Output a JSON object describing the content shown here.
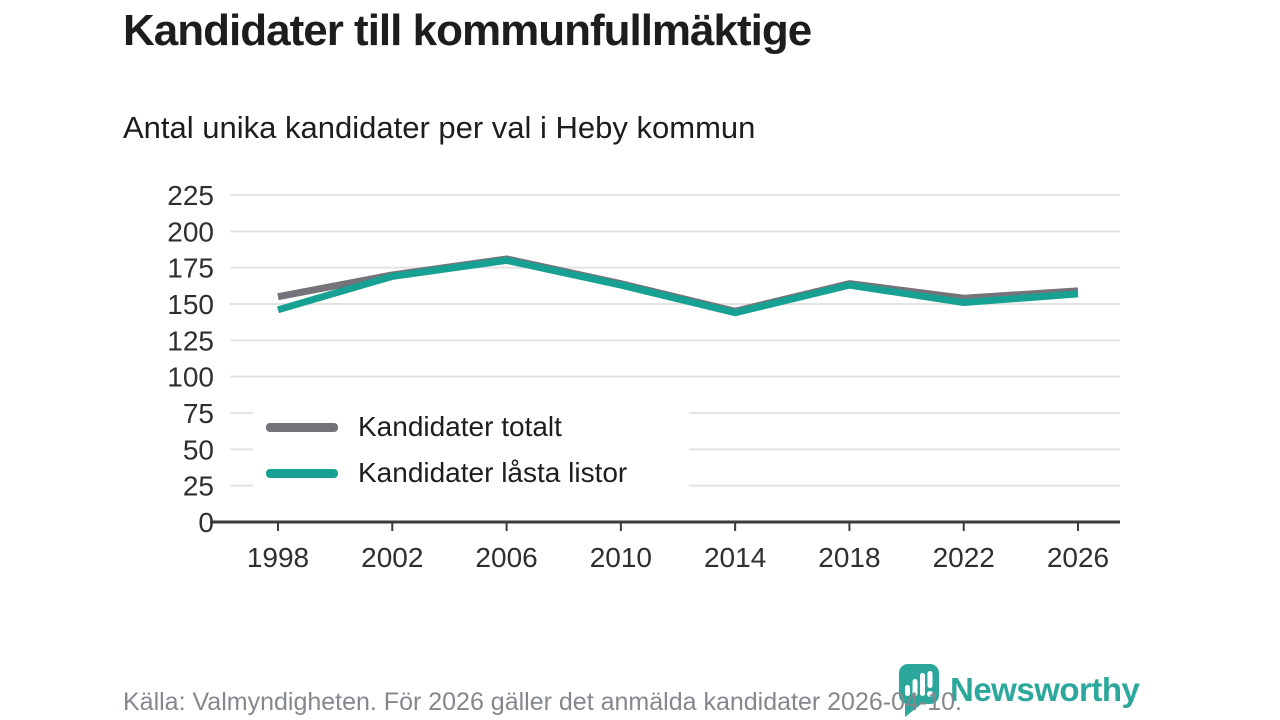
{
  "title": "Kandidater till kommunfullmäktige",
  "subtitle": "Antal unika kandidater per val i Heby kommun",
  "footer": {
    "source": "Källa: Valmyndigheten. För 2026 gäller det anmälda kandidater 2026-04-10."
  },
  "logo": {
    "text": "Newsworthy",
    "icon": "newsworthy-chart-bubble-icon",
    "color": "#2ba89b"
  },
  "colors": {
    "background": "#ffffff",
    "title_text": "#1d1d1b",
    "tick_text": "#2f2f2f",
    "grid": "#e3e3e3",
    "axis": "#3a3a3a",
    "footer_text": "#84878e",
    "legend_bg": "#ffffff",
    "series_total": "#757379",
    "series_locked": "#16a193"
  },
  "chart_data": {
    "type": "line",
    "title": "Kandidater till kommunfullmäktige",
    "subtitle": "Antal unika kandidater per val i Heby kommun",
    "x": [
      1998,
      2002,
      2006,
      2010,
      2014,
      2018,
      2022,
      2026
    ],
    "xtick_labels": [
      "1998",
      "2002",
      "2006",
      "2010",
      "2014",
      "2018",
      "2022",
      "2026"
    ],
    "series": [
      {
        "name": "Kandidater totalt",
        "color": "#757379",
        "values": [
          155,
          170,
          181,
          164,
          145,
          164,
          154,
          159
        ]
      },
      {
        "name": "Kandidater låsta listor",
        "color": "#16a193",
        "values": [
          146,
          169,
          180,
          163,
          144,
          163,
          151,
          157
        ]
      }
    ],
    "ylim": [
      0,
      225
    ],
    "yticks": [
      0,
      25,
      50,
      75,
      100,
      125,
      150,
      175,
      200,
      225
    ],
    "grid": true,
    "legend_position": "inside bottom-left",
    "xlabel": "",
    "ylabel": ""
  }
}
